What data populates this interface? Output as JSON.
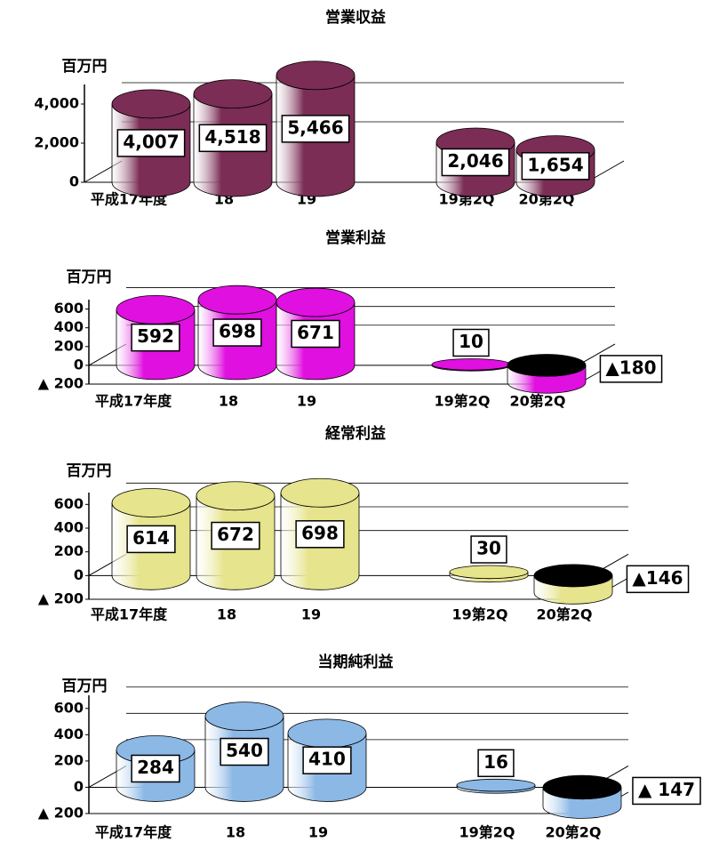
{
  "chart_data": [
    {
      "type": "bar",
      "title": "営業収益",
      "y_label": "百万円",
      "categories": [
        "平成17年度",
        "18",
        "19",
        "19第2Q",
        "20第2Q"
      ],
      "values": [
        4007,
        4518,
        5466,
        2046,
        1654
      ],
      "value_labels": [
        "4,007",
        "4,518",
        "5,466",
        "2,046",
        "1,654"
      ],
      "color": "#7b2d55",
      "ylim": [
        0,
        5000
      ],
      "yticks": [
        0,
        {
          "value": 2000,
          "label": "2,000"
        },
        {
          "value": 4000,
          "label": "4,000"
        }
      ]
    },
    {
      "type": "bar",
      "title": "営業利益",
      "y_label": "百万円",
      "categories": [
        "平成17年度",
        "18",
        "19",
        "19第2Q",
        "20第2Q"
      ],
      "values": [
        592,
        698,
        671,
        10,
        -180
      ],
      "value_labels": [
        "592",
        "698",
        "671",
        "10",
        "▲180"
      ],
      "color": "#e010e0",
      "ylim": [
        -200,
        700
      ],
      "yticks": [
        {
          "value": -200,
          "label": "▲ 200"
        },
        0,
        200,
        400,
        600
      ]
    },
    {
      "type": "bar",
      "title": "経常利益",
      "y_label": "百万円",
      "categories": [
        "平成17年度",
        "18",
        "19",
        "19第2Q",
        "20第2Q"
      ],
      "values": [
        614,
        672,
        698,
        30,
        -146
      ],
      "value_labels": [
        "614",
        "672",
        "698",
        "30",
        "▲146"
      ],
      "color": "#e6e48c",
      "ylim": [
        -200,
        700
      ],
      "yticks": [
        {
          "value": -200,
          "label": "▲ 200"
        },
        0,
        200,
        400,
        600
      ]
    },
    {
      "type": "bar",
      "title": "当期純利益",
      "y_label": "百万円",
      "categories": [
        "平成17年度",
        "18",
        "19",
        "19第2Q",
        "20第2Q"
      ],
      "values": [
        284,
        540,
        410,
        16,
        -147
      ],
      "value_labels": [
        "284",
        "540",
        "410",
        "16",
        "▲ 147"
      ],
      "color": "#8cb8e6",
      "ylim": [
        -200,
        700
      ],
      "yticks": [
        {
          "value": -200,
          "label": "▲ 200"
        },
        0,
        200,
        400,
        600
      ]
    }
  ]
}
